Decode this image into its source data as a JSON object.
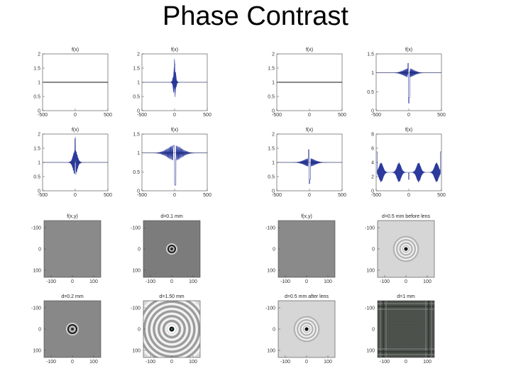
{
  "title": "Phase Contrast",
  "colors": {
    "signal": "#2b3a9c",
    "baseline": "#111111",
    "frame": "#444444"
  },
  "line_plots": [
    {
      "title": "f(x)",
      "xticks": [
        "-500",
        "0",
        "500"
      ],
      "yticks": [
        "2",
        "1.5",
        "1",
        "0.5",
        "0"
      ],
      "ylim": [
        0,
        2
      ],
      "kind": "flat"
    },
    {
      "title": "f(x)",
      "xticks": [
        "-500",
        "0",
        "500"
      ],
      "yticks": [
        "2",
        "1.5",
        "1",
        "0.5",
        "0"
      ],
      "ylim": [
        0,
        2
      ],
      "kind": "central_burst_narrow"
    },
    {
      "title": "f(x)",
      "xticks": [
        "-500",
        "0",
        "500"
      ],
      "yticks": [
        "2",
        "1.5",
        "1",
        "0.5",
        "0"
      ],
      "ylim": [
        0,
        2
      ],
      "kind": "flat"
    },
    {
      "title": "f(x)",
      "xticks": [
        "-500",
        "0",
        "500"
      ],
      "yticks": [
        "1.5",
        "1",
        "0.5",
        "0"
      ],
      "ylim": [
        0,
        1.5
      ],
      "kind": "dip_spike"
    },
    {
      "title": "f(x)",
      "xticks": [
        "-500",
        "0",
        "500"
      ],
      "yticks": [
        "2",
        "1.5",
        "1",
        "0.5",
        "0"
      ],
      "ylim": [
        0,
        2
      ],
      "kind": "central_burst_medium"
    },
    {
      "title": "f(x)",
      "xticks": [
        "-500",
        "0",
        "500"
      ],
      "yticks": [
        "1.5",
        "1",
        "0.5",
        "0"
      ],
      "ylim": [
        0,
        1.5
      ],
      "kind": "deep_dip_wide"
    },
    {
      "title": "f(x)",
      "xticks": [
        "-500",
        "0",
        "500"
      ],
      "yticks": [
        "2",
        "1.5",
        "1",
        "0.5",
        "0"
      ],
      "ylim": [
        0,
        2
      ],
      "kind": "dip_spike_tall"
    },
    {
      "title": "f(x)",
      "xticks": [
        "-500",
        "0",
        "500"
      ],
      "yticks": [
        "8",
        "6",
        "4",
        "2",
        "0"
      ],
      "ylim": [
        0,
        8
      ],
      "kind": "periodic_bursts"
    }
  ],
  "image_plots": [
    {
      "title": "f(x,y)",
      "xticks": [
        "-100",
        "0",
        "100"
      ],
      "yticks": [
        "-100",
        "0",
        "100"
      ],
      "kind": "uniform_dark"
    },
    {
      "title": "d=0.1 mm",
      "xticks": [
        "-100",
        "0",
        "100"
      ],
      "yticks": [
        "-100",
        "0",
        "100"
      ],
      "kind": "small_ring_dark"
    },
    {
      "title": "f(x,y)",
      "xticks": [
        "-100",
        "0",
        "100"
      ],
      "yticks": [
        "-100",
        "0",
        "100"
      ],
      "kind": "uniform_dark"
    },
    {
      "title": "d=0.5 mm before lens",
      "xticks": [
        "-100",
        "0",
        "100"
      ],
      "yticks": [
        "-100",
        "0",
        "100"
      ],
      "kind": "rings_light_small"
    },
    {
      "title": "d=0.2 mm",
      "xticks": [
        "-100",
        "0",
        "100"
      ],
      "yticks": [
        "-100",
        "0",
        "100"
      ],
      "kind": "small_ring_dark2"
    },
    {
      "title": "d=1.50 mm",
      "xticks": [
        "-100",
        "0",
        "100"
      ],
      "yticks": [
        "-100",
        "0",
        "100"
      ],
      "kind": "rings_light_big"
    },
    {
      "title": "d=0.5 mm after lens",
      "xticks": [
        "-100",
        "0",
        "100"
      ],
      "yticks": [
        "-100",
        "0",
        "100"
      ],
      "kind": "rings_light_small2"
    },
    {
      "title": "d=1 mm",
      "xticks": [
        "-100",
        "0",
        "100"
      ],
      "yticks": [
        "-100",
        "0",
        "100"
      ],
      "kind": "grid_dark"
    }
  ]
}
